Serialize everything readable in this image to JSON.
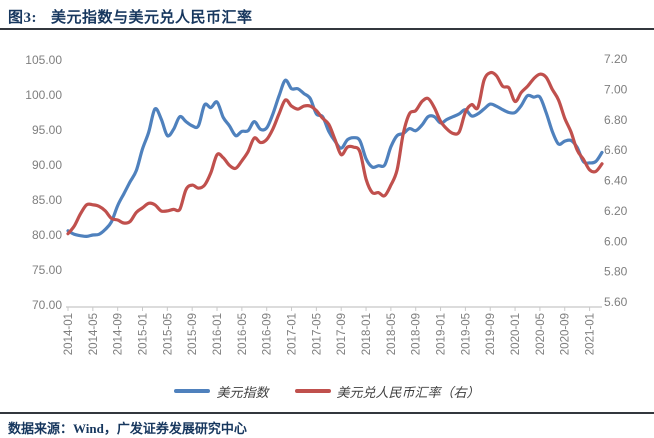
{
  "header": {
    "title_tag": "图3:",
    "title": "美元指数与美元兑人民币汇率"
  },
  "footer": {
    "source_text": "数据来源：Wind，广发证券发展研究中心"
  },
  "chart_data": {
    "type": "line",
    "title": "美元指数与美元兑人民币汇率",
    "x_frequency": "monthly",
    "x_start": "2014-01",
    "x_end": "2021-03",
    "grid": false,
    "legend_position": "bottom",
    "x_axis": {
      "tick_labels": [
        "2014-01",
        "2014-05",
        "2014-09",
        "2015-01",
        "2015-05",
        "2015-09",
        "2016-01",
        "2016-05",
        "2016-09",
        "2017-01",
        "2017-05",
        "2017-09",
        "2018-01",
        "2018-05",
        "2018-09",
        "2019-01",
        "2019-05",
        "2019-09",
        "2020-01",
        "2020-05",
        "2020-09",
        "2021-01"
      ],
      "tick_every_n_months": 4
    },
    "left_axis": {
      "ticks": [
        "105.00",
        "100.00",
        "95.00",
        "90.00",
        "85.00",
        "80.00",
        "75.00",
        "70.00"
      ],
      "min": 70.0,
      "max": 105.0
    },
    "right_axis": {
      "ticks": [
        "7.20",
        "7.00",
        "6.80",
        "6.60",
        "6.40",
        "6.20",
        "6.00",
        "5.80",
        "5.60"
      ],
      "min": 5.6,
      "max": 7.2
    },
    "series": [
      {
        "name": "美元指数",
        "axis": "left",
        "color": "#4F81BD",
        "values": [
          80.6,
          80.1,
          79.9,
          79.8,
          80.0,
          80.1,
          80.8,
          81.9,
          84.2,
          85.9,
          87.6,
          89.2,
          92.3,
          94.7,
          98.0,
          96.6,
          94.2,
          95.1,
          96.9,
          96.2,
          95.6,
          95.6,
          98.6,
          98.2,
          99.0,
          96.8,
          95.6,
          94.2,
          94.8,
          94.9,
          96.2,
          95.1,
          95.3,
          97.3,
          99.9,
          102.1,
          100.9,
          100.9,
          100.2,
          99.5,
          97.3,
          96.9,
          94.8,
          93.4,
          92.4,
          93.6,
          93.9,
          93.5,
          90.9,
          89.7,
          89.9,
          90.0,
          92.6,
          94.2,
          94.5,
          95.2,
          94.9,
          95.7,
          96.9,
          96.9,
          96.0,
          96.5,
          96.9,
          97.3,
          97.9,
          97.0,
          97.3,
          98.0,
          98.7,
          98.4,
          97.9,
          97.5,
          97.5,
          98.5,
          99.9,
          99.7,
          99.7,
          97.5,
          94.8,
          93.0,
          93.4,
          93.5,
          92.5,
          90.5,
          90.3,
          90.5,
          91.8
        ]
      },
      {
        "name": "美元兑人民币汇率（右）",
        "axis": "right",
        "color": "#C0504D",
        "values": [
          6.05,
          6.1,
          6.18,
          6.24,
          6.24,
          6.23,
          6.2,
          6.15,
          6.14,
          6.12,
          6.13,
          6.19,
          6.22,
          6.25,
          6.24,
          6.2,
          6.2,
          6.21,
          6.21,
          6.34,
          6.37,
          6.35,
          6.37,
          6.45,
          6.57,
          6.55,
          6.5,
          6.48,
          6.53,
          6.59,
          6.68,
          6.65,
          6.67,
          6.74,
          6.84,
          6.93,
          6.89,
          6.87,
          6.89,
          6.89,
          6.86,
          6.81,
          6.77,
          6.67,
          6.57,
          6.62,
          6.62,
          6.59,
          6.41,
          6.32,
          6.32,
          6.3,
          6.37,
          6.47,
          6.71,
          6.84,
          6.86,
          6.92,
          6.94,
          6.88,
          6.79,
          6.74,
          6.71,
          6.72,
          6.85,
          6.9,
          6.88,
          7.06,
          7.11,
          7.09,
          7.02,
          7.01,
          6.92,
          6.98,
          7.02,
          7.07,
          7.1,
          7.08,
          7.0,
          6.93,
          6.81,
          6.72,
          6.6,
          6.54,
          6.47,
          6.46,
          6.51
        ]
      }
    ],
    "colors": {
      "axis_text": "#7F7F7F",
      "axis_line": "#C8C8C8",
      "title_navy": "#17375E"
    }
  }
}
